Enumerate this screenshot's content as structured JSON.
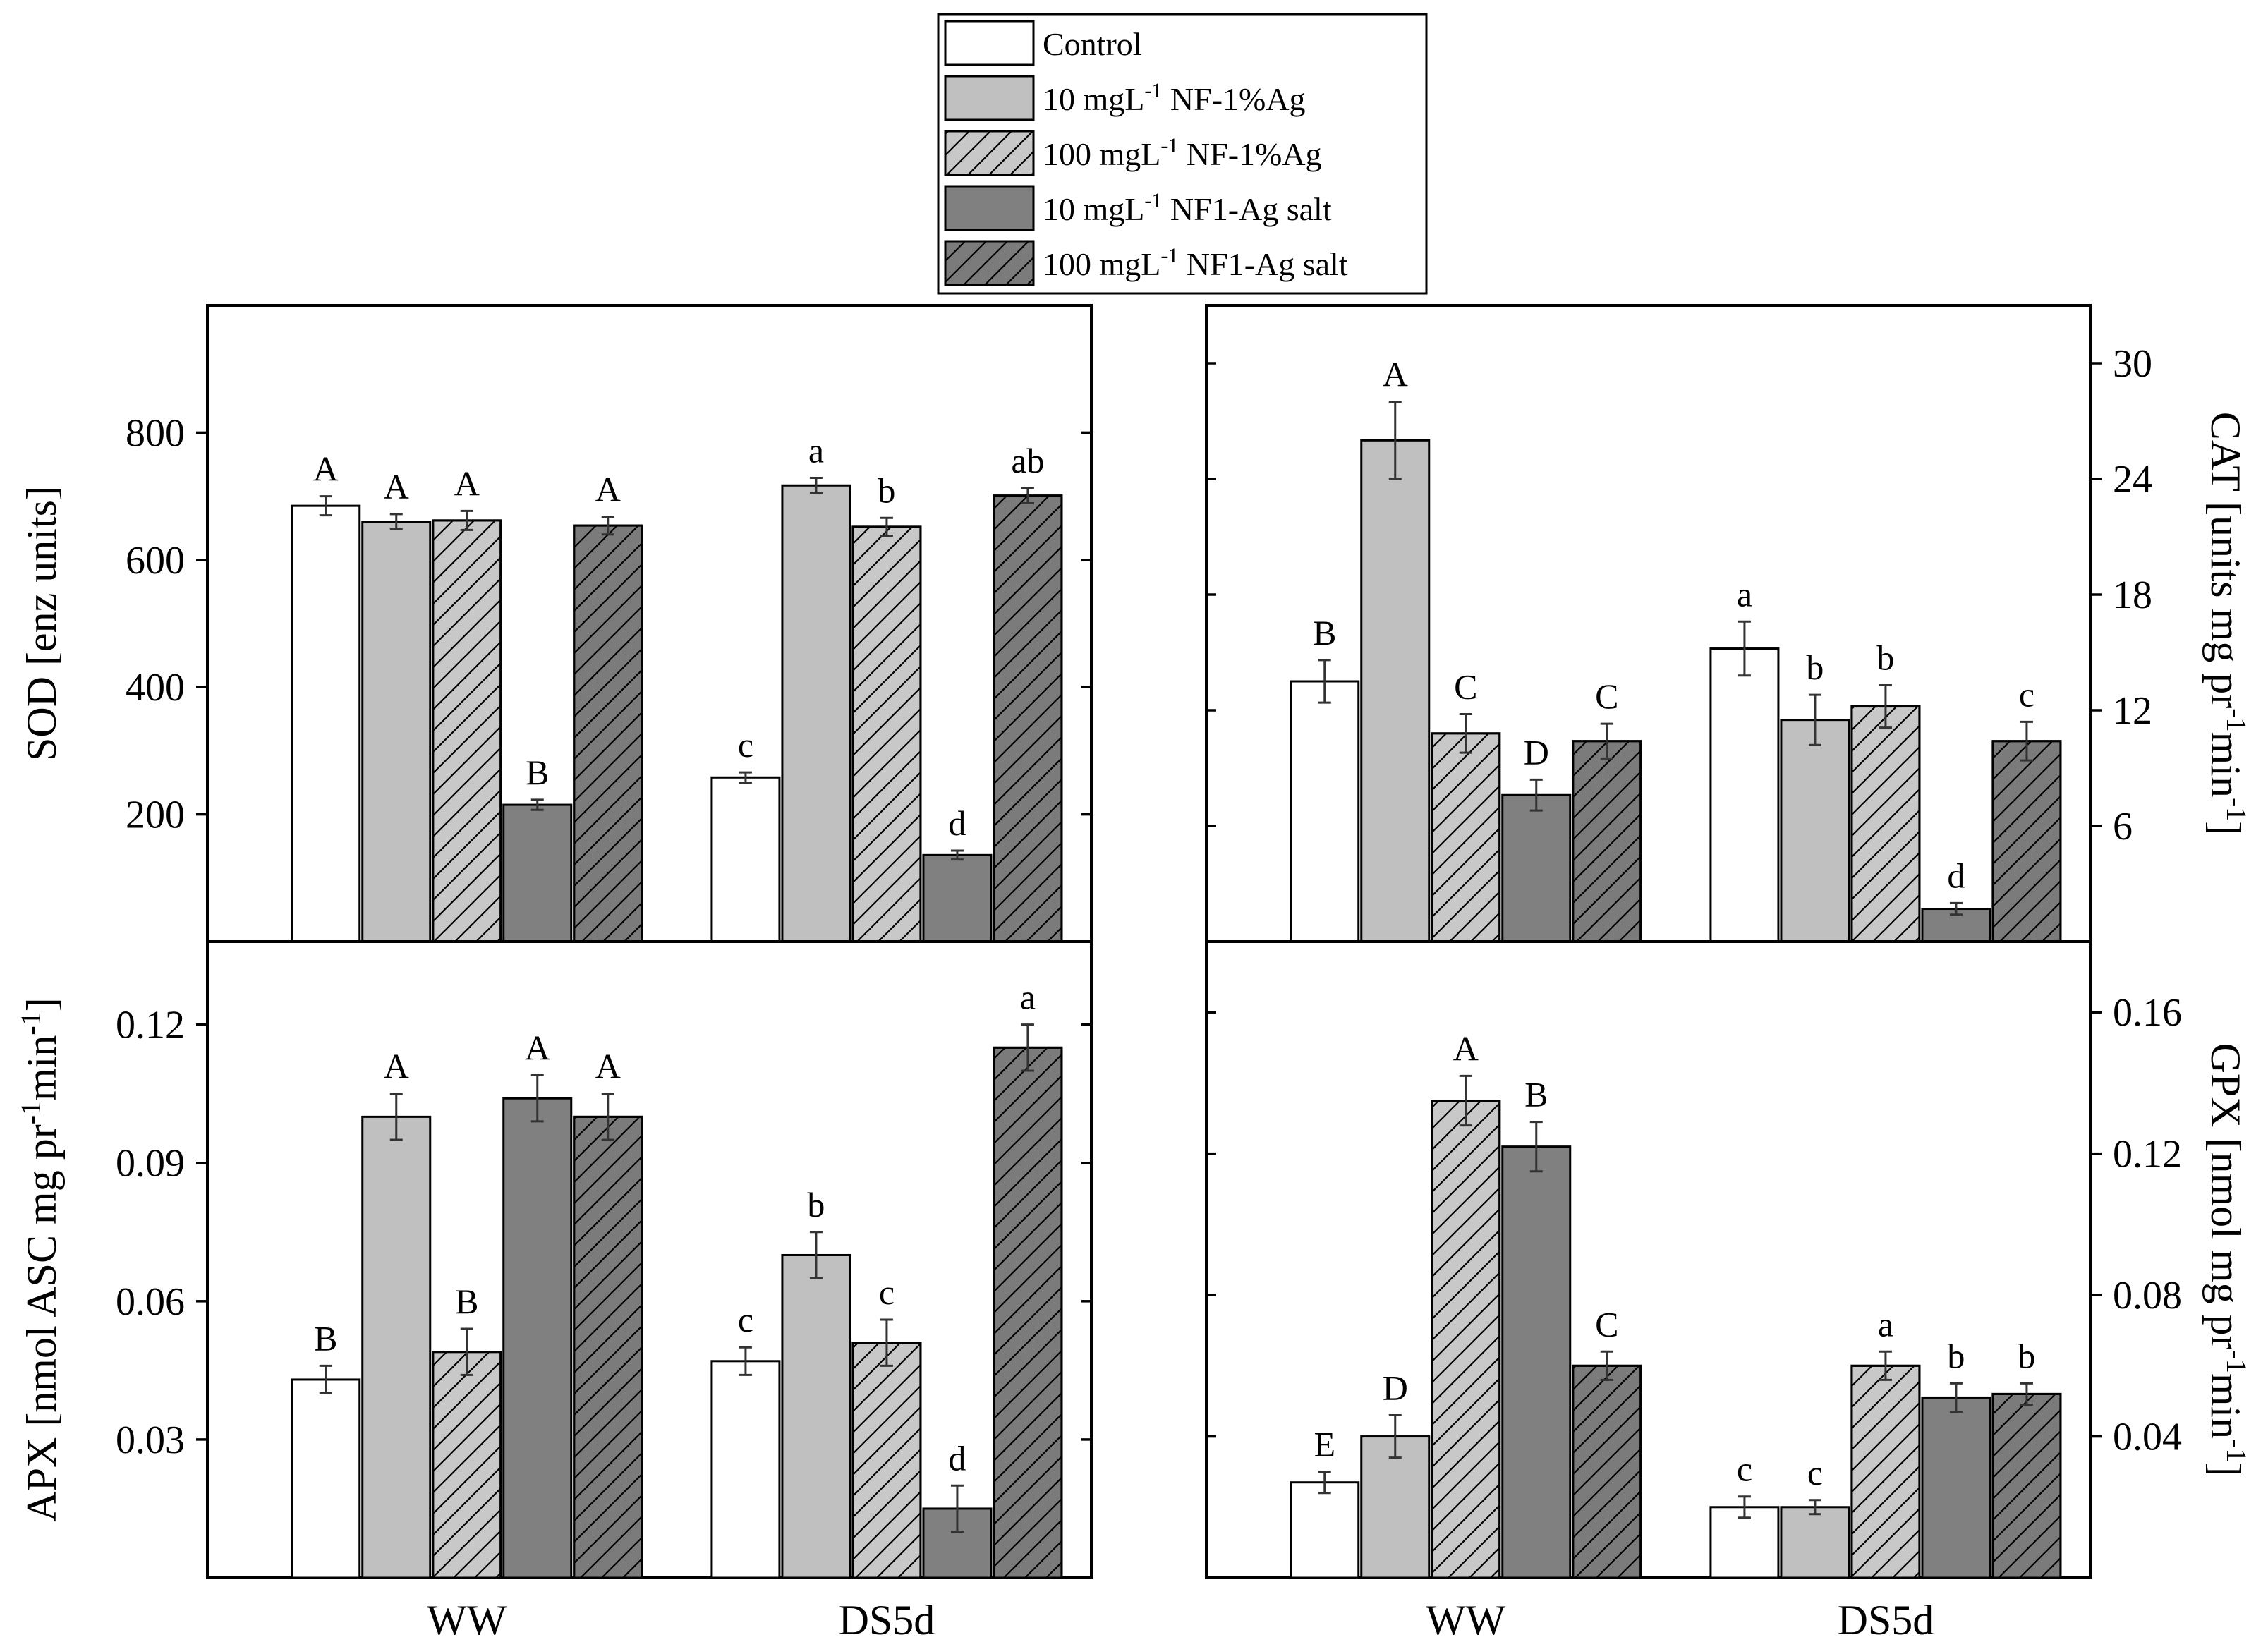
{
  "colors": {
    "control": "#ffffff",
    "nf10": "#c0c0c0",
    "nf100": "#c8c8c8",
    "salt10": "#808080",
    "salt100": "#7b7b7b",
    "axis": "#000000"
  },
  "legend": {
    "items": [
      {
        "prefix": "Control",
        "sup": "",
        "suffix": "",
        "fill": "control",
        "hatch": false
      },
      {
        "prefix": "10 mgL",
        "sup": "-1",
        "suffix": " NF-1%Ag",
        "fill": "nf10",
        "hatch": false
      },
      {
        "prefix": "100 mgL",
        "sup": "-1",
        "suffix": " NF-1%Ag",
        "fill": "nf100",
        "hatch": true
      },
      {
        "prefix": "10 mgL",
        "sup": "-1",
        "suffix": " NF1-Ag salt",
        "fill": "salt10",
        "hatch": false
      },
      {
        "prefix": "100 mgL",
        "sup": "-1",
        "suffix": " NF1-Ag salt",
        "fill": "salt100",
        "hatch": true
      }
    ]
  },
  "chart_data": [
    {
      "id": "sod",
      "type": "bar",
      "ylabel": "SOD [enz units]",
      "ylabel_parts": [
        {
          "t": "SOD [enz units]",
          "sup": false
        }
      ],
      "yaxis_side": "left",
      "ylim": [
        0,
        1000
      ],
      "yticks": [
        200,
        400,
        600,
        800
      ],
      "ytick_labels": [
        "200",
        "400",
        "600",
        "800"
      ],
      "categories": [
        "WW",
        "DS5d"
      ],
      "show_xlabels": false,
      "series": [
        {
          "name": "Control",
          "values": [
            685,
            258
          ],
          "errors": [
            15,
            8
          ],
          "letters": [
            "A",
            "c"
          ]
        },
        {
          "name": "10 mgL-1 NF-1%Ag",
          "values": [
            660,
            717
          ],
          "errors": [
            12,
            12
          ],
          "letters": [
            "A",
            "a"
          ]
        },
        {
          "name": "100 mgL-1 NF-1%Ag",
          "values": [
            662,
            652
          ],
          "errors": [
            15,
            14
          ],
          "letters": [
            "A",
            "b"
          ]
        },
        {
          "name": "10 mgL-1 NF1-Ag salt",
          "values": [
            215,
            136
          ],
          "errors": [
            8,
            7
          ],
          "letters": [
            "B",
            "d"
          ]
        },
        {
          "name": "100 mgL-1 NF1-Ag salt",
          "values": [
            654,
            701
          ],
          "errors": [
            14,
            12
          ],
          "letters": [
            "A",
            "ab"
          ]
        }
      ]
    },
    {
      "id": "cat",
      "type": "bar",
      "ylabel": "CAT [units mg pr-1 min-1]",
      "ylabel_parts": [
        {
          "t": "CAT [units mg pr",
          "sup": false
        },
        {
          "t": "-1",
          "sup": true
        },
        {
          "t": "min",
          "sup": false
        },
        {
          "t": "-1",
          "sup": true
        },
        {
          "t": "]",
          "sup": false
        }
      ],
      "yaxis_side": "right",
      "ylim": [
        0,
        33
      ],
      "yticks": [
        6,
        12,
        18,
        24,
        30
      ],
      "ytick_labels": [
        "6",
        "12",
        "18",
        "24",
        "30"
      ],
      "categories": [
        "WW",
        "DS5d"
      ],
      "show_xlabels": false,
      "series": [
        {
          "name": "Control",
          "values": [
            13.5,
            15.2
          ],
          "errors": [
            1.1,
            1.4
          ],
          "letters": [
            "B",
            "a"
          ]
        },
        {
          "name": "10 mgL-1 NF-1%Ag",
          "values": [
            26.0,
            11.5
          ],
          "errors": [
            2.0,
            1.3
          ],
          "letters": [
            "A",
            "b"
          ]
        },
        {
          "name": "100 mgL-1 NF-1%Ag",
          "values": [
            10.8,
            12.2
          ],
          "errors": [
            1.0,
            1.1
          ],
          "letters": [
            "C",
            "b"
          ]
        },
        {
          "name": "10 mgL-1 NF1-Ag salt",
          "values": [
            7.6,
            1.7
          ],
          "errors": [
            0.8,
            0.3
          ],
          "letters": [
            "D",
            "d"
          ]
        },
        {
          "name": "100 mgL-1 NF1-Ag salt",
          "values": [
            10.4,
            10.4
          ],
          "errors": [
            0.9,
            1.0
          ],
          "letters": [
            "C",
            "c"
          ]
        }
      ]
    },
    {
      "id": "apx",
      "type": "bar",
      "ylabel": "APX [nmol ASC mg pr-1min-1]",
      "ylabel_parts": [
        {
          "t": "APX [nmol ASC mg pr",
          "sup": false
        },
        {
          "t": "-1",
          "sup": true
        },
        {
          "t": "min",
          "sup": false
        },
        {
          "t": "-1",
          "sup": true
        },
        {
          "t": "]",
          "sup": false
        }
      ],
      "yaxis_side": "left",
      "ylim": [
        0,
        0.138
      ],
      "yticks": [
        0.03,
        0.06,
        0.09,
        0.12
      ],
      "ytick_labels": [
        "0.03",
        "0.06",
        "0.09",
        "0.12"
      ],
      "categories": [
        "WW",
        "DS5d"
      ],
      "show_xlabels": true,
      "series": [
        {
          "name": "Control",
          "values": [
            0.043,
            0.047
          ],
          "errors": [
            0.003,
            0.003
          ],
          "letters": [
            "B",
            "c"
          ]
        },
        {
          "name": "10 mgL-1 NF-1%Ag",
          "values": [
            0.1,
            0.07
          ],
          "errors": [
            0.005,
            0.005
          ],
          "letters": [
            "A",
            "b"
          ]
        },
        {
          "name": "100 mgL-1 NF-1%Ag",
          "values": [
            0.049,
            0.051
          ],
          "errors": [
            0.005,
            0.005
          ],
          "letters": [
            "B",
            "c"
          ]
        },
        {
          "name": "10 mgL-1 NF1-Ag salt",
          "values": [
            0.104,
            0.015
          ],
          "errors": [
            0.005,
            0.005
          ],
          "letters": [
            "A",
            "d"
          ]
        },
        {
          "name": "100 mgL-1 NF1-Ag salt",
          "values": [
            0.1,
            0.115
          ],
          "errors": [
            0.005,
            0.005
          ],
          "letters": [
            "A",
            "a"
          ]
        }
      ]
    },
    {
      "id": "gpx",
      "type": "bar",
      "ylabel": "GPX [nmol mg pr-1min-1]",
      "ylabel_parts": [
        {
          "t": "GPX [nmol mg pr",
          "sup": false
        },
        {
          "t": "-1",
          "sup": true
        },
        {
          "t": "min",
          "sup": false
        },
        {
          "t": "-1",
          "sup": true
        },
        {
          "t": "]",
          "sup": false
        }
      ],
      "yaxis_side": "right",
      "ylim": [
        0,
        0.18
      ],
      "yticks": [
        0.04,
        0.08,
        0.12,
        0.16
      ],
      "ytick_labels": [
        "0.04",
        "0.08",
        "0.12",
        "0.16"
      ],
      "categories": [
        "WW",
        "DS5d"
      ],
      "show_xlabels": true,
      "series": [
        {
          "name": "Control",
          "values": [
            0.027,
            0.02
          ],
          "errors": [
            0.003,
            0.003
          ],
          "letters": [
            "E",
            "c"
          ]
        },
        {
          "name": "10 mgL-1 NF-1%Ag",
          "values": [
            0.04,
            0.02
          ],
          "errors": [
            0.006,
            0.002
          ],
          "letters": [
            "D",
            "c"
          ]
        },
        {
          "name": "100 mgL-1 NF-1%Ag",
          "values": [
            0.135,
            0.06
          ],
          "errors": [
            0.007,
            0.004
          ],
          "letters": [
            "A",
            "a"
          ]
        },
        {
          "name": "10 mgL-1 NF1-Ag salt",
          "values": [
            0.122,
            0.051
          ],
          "errors": [
            0.007,
            0.004
          ],
          "letters": [
            "B",
            "b"
          ]
        },
        {
          "name": "100 mgL-1 NF1-Ag salt",
          "values": [
            0.06,
            0.052
          ],
          "errors": [
            0.004,
            0.003
          ],
          "letters": [
            "C",
            "b"
          ]
        }
      ]
    }
  ]
}
